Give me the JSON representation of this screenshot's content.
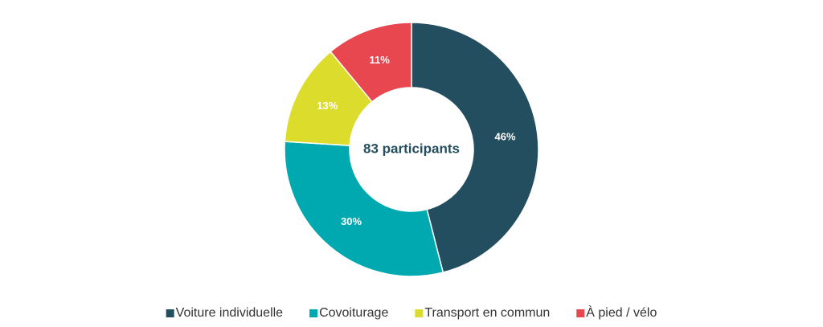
{
  "chart_data": {
    "type": "donut",
    "center_label": "83 participants",
    "categories": [
      "Voiture individuelle",
      "Covoiturage",
      "Transport en commun",
      "À pied / vélo"
    ],
    "values": [
      46,
      30,
      13,
      11
    ],
    "value_labels": [
      "46%",
      "30%",
      "13%",
      "11%"
    ],
    "colors": [
      "#234e5f",
      "#00a9b0",
      "#dcdc2c",
      "#e8474f"
    ],
    "legend": "bottom"
  }
}
